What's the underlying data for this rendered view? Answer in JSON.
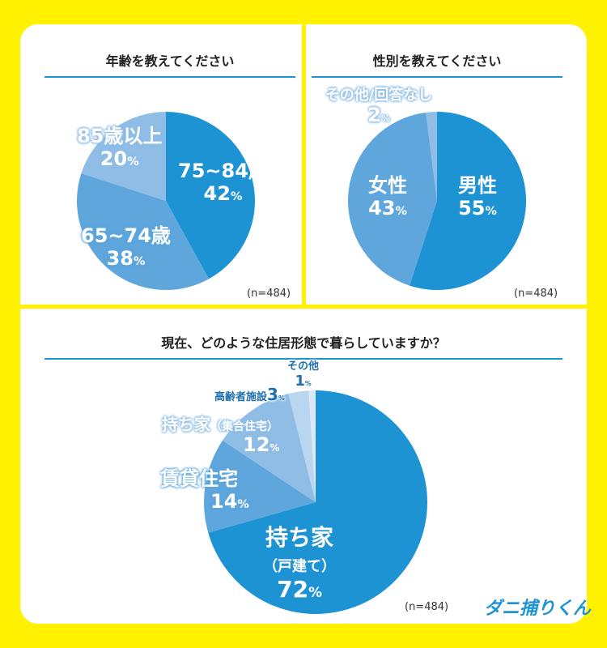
{
  "colors": {
    "background": "#fff100",
    "primary": "#1e93d3",
    "mid": "#5ea6dc",
    "light": "#8fbde6",
    "lighter": "#b9d6f0",
    "lightest": "#dbe9f7"
  },
  "logo": "ダニ捕りくん",
  "chart_data": [
    {
      "type": "pie",
      "title": "年齢を教えてください",
      "note": "(n=484)",
      "slices": [
        {
          "label": "75~84歳",
          "value": 42,
          "color": "#1e93d3"
        },
        {
          "label": "65~74歳",
          "value": 38,
          "color": "#5ea6dc"
        },
        {
          "label": "85歳以上",
          "value": 20,
          "color": "#8fbde6"
        }
      ]
    },
    {
      "type": "pie",
      "title": "性別を教えてください",
      "note": "(n=484)",
      "slices": [
        {
          "label": "男性",
          "value": 55,
          "color": "#1e93d3"
        },
        {
          "label": "女性",
          "value": 43,
          "color": "#5ea6dc"
        },
        {
          "label": "その他/回答なし",
          "value": 2,
          "color": "#8fbde6"
        }
      ]
    },
    {
      "type": "pie",
      "title": "現在、どのような住居形態で暮らしていますか？",
      "note": "(n=484)",
      "slices": [
        {
          "label": "持ち家（戸建て）",
          "label_main": "持ち家",
          "label_sub": "（戸建て）",
          "value": 72,
          "color": "#1e93d3"
        },
        {
          "label": "賃貸住宅",
          "value": 14,
          "color": "#5ea6dc"
        },
        {
          "label": "持ち家（集合住宅）",
          "label_main": "持ち家",
          "label_sub": "（集合住宅）",
          "value": 12,
          "color": "#8fbde6"
        },
        {
          "label": "高齢者施設",
          "value": 3,
          "color": "#b9d6f0"
        },
        {
          "label": "その他",
          "value": 1,
          "color": "#dbe9f7"
        }
      ]
    }
  ]
}
